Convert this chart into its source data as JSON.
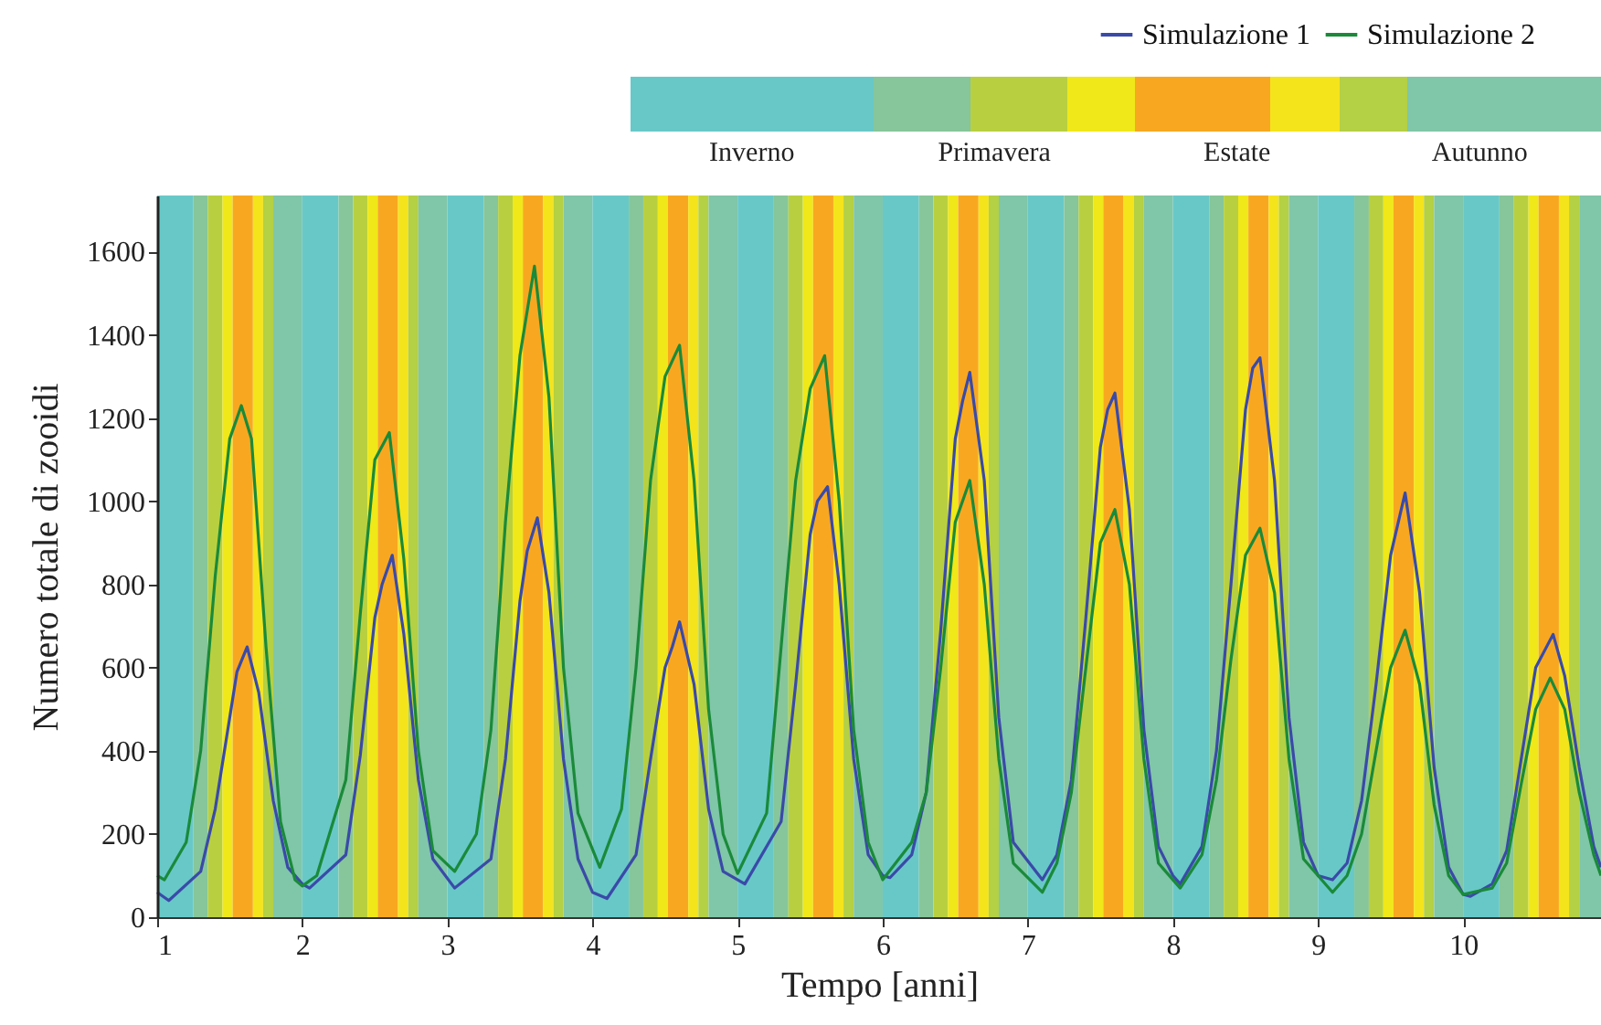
{
  "chart_data": {
    "type": "line",
    "xlabel": "Tempo [anni]",
    "ylabel": "Numero totale di zooidi",
    "annotations": [
      "Inverno",
      "Primavera",
      "Estate",
      "Autunno"
    ],
    "xlim": [
      1,
      10.95
    ],
    "xticks": [
      1,
      2,
      3,
      4,
      5,
      6,
      7,
      8,
      9,
      10
    ],
    "ylim": [
      0,
      1735
    ],
    "yticks": [
      0,
      200,
      400,
      600,
      800,
      1000,
      1200,
      1400,
      1600
    ],
    "grid": false,
    "legend": "top right",
    "line_style": "solid",
    "marker": "none",
    "bands": [
      {
        "axis": "x",
        "from": 1,
        "to": 1.25,
        "color": "#68c8c8"
      },
      {
        "axis": "x",
        "from": 1.25,
        "to": 1.35,
        "color": "#86c69a"
      },
      {
        "axis": "x",
        "from": 1.35,
        "to": 1.45,
        "color": "#b8d040"
      },
      {
        "axis": "x",
        "from": 1.45,
        "to": 1.52,
        "color": "#f0e818"
      },
      {
        "axis": "x",
        "from": 1.52,
        "to": 1.66,
        "color": "#f8a820"
      },
      {
        "axis": "x",
        "from": 1.66,
        "to": 1.73,
        "color": "#f4e41c"
      },
      {
        "axis": "x",
        "from": 1.73,
        "to": 1.8,
        "color": "#b4d044"
      },
      {
        "axis": "x",
        "from": 1.8,
        "to": 2,
        "color": "#80c6a8"
      },
      {
        "axis": "x",
        "from": 2,
        "to": 2.25,
        "color": "#68c8c8"
      },
      {
        "axis": "x",
        "from": 2.25,
        "to": 2.35,
        "color": "#86c69a"
      },
      {
        "axis": "x",
        "from": 2.35,
        "to": 2.45,
        "color": "#b8d040"
      },
      {
        "axis": "x",
        "from": 2.45,
        "to": 2.52,
        "color": "#f0e818"
      },
      {
        "axis": "x",
        "from": 2.52,
        "to": 2.66,
        "color": "#f8a820"
      },
      {
        "axis": "x",
        "from": 2.66,
        "to": 2.73,
        "color": "#f4e41c"
      },
      {
        "axis": "x",
        "from": 2.73,
        "to": 2.8,
        "color": "#b4d044"
      },
      {
        "axis": "x",
        "from": 2.8,
        "to": 3,
        "color": "#80c6a8"
      },
      {
        "axis": "x",
        "from": 3,
        "to": 3.25,
        "color": "#68c8c8"
      },
      {
        "axis": "x",
        "from": 3.25,
        "to": 3.35,
        "color": "#86c69a"
      },
      {
        "axis": "x",
        "from": 3.35,
        "to": 3.45,
        "color": "#b8d040"
      },
      {
        "axis": "x",
        "from": 3.45,
        "to": 3.52,
        "color": "#f0e818"
      },
      {
        "axis": "x",
        "from": 3.52,
        "to": 3.66,
        "color": "#f8a820"
      },
      {
        "axis": "x",
        "from": 3.66,
        "to": 3.73,
        "color": "#f4e41c"
      },
      {
        "axis": "x",
        "from": 3.73,
        "to": 3.8,
        "color": "#b4d044"
      },
      {
        "axis": "x",
        "from": 3.8,
        "to": 4,
        "color": "#80c6a8"
      },
      {
        "axis": "x",
        "from": 4,
        "to": 4.25,
        "color": "#68c8c8"
      },
      {
        "axis": "x",
        "from": 4.25,
        "to": 4.35,
        "color": "#86c69a"
      },
      {
        "axis": "x",
        "from": 4.35,
        "to": 4.45,
        "color": "#b8d040"
      },
      {
        "axis": "x",
        "from": 4.45,
        "to": 4.52,
        "color": "#f0e818"
      },
      {
        "axis": "x",
        "from": 4.52,
        "to": 4.66,
        "color": "#f8a820"
      },
      {
        "axis": "x",
        "from": 4.66,
        "to": 4.73,
        "color": "#f4e41c"
      },
      {
        "axis": "x",
        "from": 4.73,
        "to": 4.8,
        "color": "#b4d044"
      },
      {
        "axis": "x",
        "from": 4.8,
        "to": 5,
        "color": "#80c6a8"
      },
      {
        "axis": "x",
        "from": 5,
        "to": 5.25,
        "color": "#68c8c8"
      },
      {
        "axis": "x",
        "from": 5.25,
        "to": 5.35,
        "color": "#86c69a"
      },
      {
        "axis": "x",
        "from": 5.35,
        "to": 5.45,
        "color": "#b8d040"
      },
      {
        "axis": "x",
        "from": 5.45,
        "to": 5.52,
        "color": "#f0e818"
      },
      {
        "axis": "x",
        "from": 5.52,
        "to": 5.66,
        "color": "#f8a820"
      },
      {
        "axis": "x",
        "from": 5.66,
        "to": 5.73,
        "color": "#f4e41c"
      },
      {
        "axis": "x",
        "from": 5.73,
        "to": 5.8,
        "color": "#b4d044"
      },
      {
        "axis": "x",
        "from": 5.8,
        "to": 6,
        "color": "#80c6a8"
      },
      {
        "axis": "x",
        "from": 6,
        "to": 6.25,
        "color": "#68c8c8"
      },
      {
        "axis": "x",
        "from": 6.25,
        "to": 6.35,
        "color": "#86c69a"
      },
      {
        "axis": "x",
        "from": 6.35,
        "to": 6.45,
        "color": "#b8d040"
      },
      {
        "axis": "x",
        "from": 6.45,
        "to": 6.52,
        "color": "#f0e818"
      },
      {
        "axis": "x",
        "from": 6.52,
        "to": 6.66,
        "color": "#f8a820"
      },
      {
        "axis": "x",
        "from": 6.66,
        "to": 6.73,
        "color": "#f4e41c"
      },
      {
        "axis": "x",
        "from": 6.73,
        "to": 6.8,
        "color": "#b4d044"
      },
      {
        "axis": "x",
        "from": 6.8,
        "to": 7,
        "color": "#80c6a8"
      },
      {
        "axis": "x",
        "from": 7,
        "to": 7.25,
        "color": "#68c8c8"
      },
      {
        "axis": "x",
        "from": 7.25,
        "to": 7.35,
        "color": "#86c69a"
      },
      {
        "axis": "x",
        "from": 7.35,
        "to": 7.45,
        "color": "#b8d040"
      },
      {
        "axis": "x",
        "from": 7.45,
        "to": 7.52,
        "color": "#f0e818"
      },
      {
        "axis": "x",
        "from": 7.52,
        "to": 7.66,
        "color": "#f8a820"
      },
      {
        "axis": "x",
        "from": 7.66,
        "to": 7.73,
        "color": "#f4e41c"
      },
      {
        "axis": "x",
        "from": 7.73,
        "to": 7.8,
        "color": "#b4d044"
      },
      {
        "axis": "x",
        "from": 7.8,
        "to": 8,
        "color": "#80c6a8"
      },
      {
        "axis": "x",
        "from": 8,
        "to": 8.25,
        "color": "#68c8c8"
      },
      {
        "axis": "x",
        "from": 8.25,
        "to": 8.35,
        "color": "#86c69a"
      },
      {
        "axis": "x",
        "from": 8.35,
        "to": 8.45,
        "color": "#b8d040"
      },
      {
        "axis": "x",
        "from": 8.45,
        "to": 8.52,
        "color": "#f0e818"
      },
      {
        "axis": "x",
        "from": 8.52,
        "to": 8.66,
        "color": "#f8a820"
      },
      {
        "axis": "x",
        "from": 8.66,
        "to": 8.73,
        "color": "#f4e41c"
      },
      {
        "axis": "x",
        "from": 8.73,
        "to": 8.8,
        "color": "#b4d044"
      },
      {
        "axis": "x",
        "from": 8.8,
        "to": 9,
        "color": "#80c6a8"
      },
      {
        "axis": "x",
        "from": 9,
        "to": 9.25,
        "color": "#68c8c8"
      },
      {
        "axis": "x",
        "from": 9.25,
        "to": 9.35,
        "color": "#86c69a"
      },
      {
        "axis": "x",
        "from": 9.35,
        "to": 9.45,
        "color": "#b8d040"
      },
      {
        "axis": "x",
        "from": 9.45,
        "to": 9.52,
        "color": "#f0e818"
      },
      {
        "axis": "x",
        "from": 9.52,
        "to": 9.66,
        "color": "#f8a820"
      },
      {
        "axis": "x",
        "from": 9.66,
        "to": 9.73,
        "color": "#f4e41c"
      },
      {
        "axis": "x",
        "from": 9.73,
        "to": 9.8,
        "color": "#b4d044"
      },
      {
        "axis": "x",
        "from": 9.8,
        "to": 10,
        "color": "#80c6a8"
      },
      {
        "axis": "x",
        "from": 10,
        "to": 10.25,
        "color": "#68c8c8"
      },
      {
        "axis": "x",
        "from": 10.25,
        "to": 10.35,
        "color": "#86c69a"
      },
      {
        "axis": "x",
        "from": 10.35,
        "to": 10.45,
        "color": "#b8d040"
      },
      {
        "axis": "x",
        "from": 10.45,
        "to": 10.52,
        "color": "#f0e818"
      },
      {
        "axis": "x",
        "from": 10.52,
        "to": 10.66,
        "color": "#f8a820"
      },
      {
        "axis": "x",
        "from": 10.66,
        "to": 10.73,
        "color": "#f4e41c"
      },
      {
        "axis": "x",
        "from": 10.73,
        "to": 10.8,
        "color": "#b4d044"
      },
      {
        "axis": "x",
        "from": 10.8,
        "to": 10.95,
        "color": "#80c6a8"
      }
    ],
    "series": [
      {
        "name": "Simulazione 1",
        "color": "#3a4aa8",
        "x": [
          1,
          1.08,
          1.3,
          1.4,
          1.5,
          1.55,
          1.62,
          1.7,
          1.8,
          1.9,
          2,
          2.05,
          2.3,
          2.4,
          2.5,
          2.55,
          2.62,
          2.7,
          2.8,
          2.9,
          3.05,
          3.3,
          3.4,
          3.5,
          3.55,
          3.62,
          3.7,
          3.8,
          3.9,
          4,
          4.1,
          4.3,
          4.4,
          4.5,
          4.55,
          4.6,
          4.7,
          4.8,
          4.9,
          5.05,
          5.3,
          5.4,
          5.5,
          5.55,
          5.62,
          5.7,
          5.8,
          5.9,
          6,
          6.05,
          6.2,
          6.3,
          6.4,
          6.5,
          6.55,
          6.6,
          6.7,
          6.8,
          6.9,
          7.1,
          7.2,
          7.3,
          7.4,
          7.5,
          7.55,
          7.6,
          7.7,
          7.8,
          7.9,
          8,
          8.05,
          8.2,
          8.3,
          8.4,
          8.5,
          8.55,
          8.6,
          8.7,
          8.8,
          8.9,
          9,
          9.1,
          9.2,
          9.3,
          9.4,
          9.5,
          9.6,
          9.7,
          9.8,
          9.9,
          10,
          10.05,
          10.2,
          10.3,
          10.4,
          10.5,
          10.62,
          10.7,
          10.8,
          10.9,
          10.95
        ],
        "values": [
          60,
          40,
          110,
          260,
          480,
          590,
          650,
          540,
          280,
          120,
          80,
          70,
          150,
          390,
          720,
          800,
          870,
          680,
          330,
          140,
          70,
          140,
          380,
          760,
          880,
          960,
          780,
          380,
          140,
          60,
          45,
          150,
          380,
          600,
          650,
          710,
          560,
          260,
          110,
          80,
          230,
          560,
          920,
          1000,
          1035,
          800,
          380,
          150,
          100,
          95,
          150,
          300,
          690,
          1150,
          1240,
          1310,
          1050,
          480,
          180,
          90,
          150,
          330,
          720,
          1130,
          1220,
          1260,
          980,
          450,
          170,
          100,
          80,
          170,
          400,
          800,
          1220,
          1320,
          1345,
          1050,
          480,
          180,
          100,
          90,
          130,
          280,
          560,
          870,
          1020,
          780,
          360,
          120,
          55,
          50,
          80,
          160,
          380,
          600,
          680,
          580,
          360,
          170,
          120
        ]
      },
      {
        "name": "Simulazione 2",
        "color": "#1a8a3a",
        "x": [
          1,
          1.05,
          1.2,
          1.3,
          1.4,
          1.5,
          1.58,
          1.65,
          1.75,
          1.85,
          1.95,
          2,
          2.1,
          2.3,
          2.4,
          2.5,
          2.6,
          2.7,
          2.8,
          2.9,
          3.05,
          3.2,
          3.3,
          3.4,
          3.5,
          3.6,
          3.7,
          3.8,
          3.9,
          4.05,
          4.2,
          4.3,
          4.4,
          4.5,
          4.6,
          4.7,
          4.8,
          4.9,
          5,
          5.2,
          5.3,
          5.4,
          5.5,
          5.6,
          5.7,
          5.8,
          5.9,
          6,
          6.2,
          6.3,
          6.4,
          6.5,
          6.6,
          6.7,
          6.8,
          6.9,
          7.1,
          7.2,
          7.3,
          7.4,
          7.5,
          7.6,
          7.7,
          7.8,
          7.9,
          8.05,
          8.2,
          8.3,
          8.4,
          8.5,
          8.6,
          8.7,
          8.8,
          8.9,
          9.1,
          9.2,
          9.3,
          9.4,
          9.5,
          9.6,
          9.7,
          9.8,
          9.9,
          10,
          10.2,
          10.3,
          10.4,
          10.5,
          10.6,
          10.7,
          10.8,
          10.9,
          10.95
        ],
        "values": [
          100,
          90,
          180,
          400,
          820,
          1150,
          1230,
          1150,
          650,
          230,
          90,
          75,
          100,
          330,
          730,
          1100,
          1165,
          860,
          400,
          160,
          110,
          200,
          450,
          950,
          1350,
          1565,
          1250,
          600,
          250,
          120,
          260,
          600,
          1050,
          1300,
          1375,
          1050,
          500,
          200,
          105,
          250,
          650,
          1050,
          1270,
          1350,
          1000,
          450,
          180,
          90,
          180,
          300,
          600,
          950,
          1050,
          800,
          380,
          130,
          60,
          130,
          300,
          600,
          900,
          980,
          800,
          380,
          130,
          70,
          150,
          330,
          620,
          870,
          935,
          780,
          380,
          140,
          60,
          100,
          200,
          400,
          600,
          690,
          560,
          270,
          100,
          55,
          70,
          130,
          320,
          500,
          575,
          500,
          300,
          150,
          100
        ]
      }
    ]
  }
}
